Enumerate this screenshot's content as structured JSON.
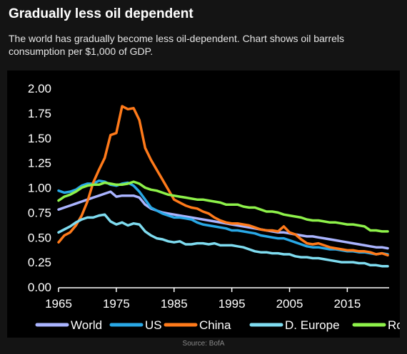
{
  "header": {
    "title": "Gradually less oil dependent",
    "subtitle": "The world has gradually become less oil-dependent. Chart shows oil barrels consumption per $1,000 of GDP."
  },
  "source": "Source: BofA",
  "chart_data": {
    "type": "line",
    "title": "",
    "xlabel": "",
    "ylabel": "",
    "xlim": [
      1965,
      2022
    ],
    "ylim": [
      0,
      2
    ],
    "x_ticks": [
      "1965",
      "1975",
      "1985",
      "1995",
      "2005",
      "2015"
    ],
    "y_ticks": [
      "0.00",
      "0.25",
      "0.50",
      "0.75",
      "1.00",
      "1.25",
      "1.50",
      "1.75",
      "2.00"
    ],
    "grid": false,
    "legend_position": "bottom",
    "x": [
      1965,
      1966,
      1967,
      1968,
      1969,
      1970,
      1971,
      1972,
      1973,
      1974,
      1975,
      1976,
      1977,
      1978,
      1979,
      1980,
      1981,
      1982,
      1983,
      1984,
      1985,
      1986,
      1987,
      1988,
      1989,
      1990,
      1991,
      1992,
      1993,
      1994,
      1995,
      1996,
      1997,
      1998,
      1999,
      2000,
      2001,
      2002,
      2003,
      2004,
      2005,
      2006,
      2007,
      2008,
      2009,
      2010,
      2011,
      2012,
      2013,
      2014,
      2015,
      2016,
      2017,
      2018,
      2019,
      2020,
      2021,
      2022
    ],
    "series": [
      {
        "name": "World",
        "color": "#aab4ff",
        "values": [
          0.78,
          0.8,
          0.82,
          0.84,
          0.86,
          0.88,
          0.9,
          0.92,
          0.94,
          0.96,
          0.91,
          0.92,
          0.92,
          0.92,
          0.9,
          0.83,
          0.79,
          0.77,
          0.75,
          0.74,
          0.73,
          0.72,
          0.71,
          0.7,
          0.69,
          0.68,
          0.67,
          0.66,
          0.65,
          0.64,
          0.63,
          0.62,
          0.61,
          0.6,
          0.59,
          0.58,
          0.57,
          0.56,
          0.55,
          0.55,
          0.54,
          0.53,
          0.52,
          0.51,
          0.51,
          0.5,
          0.49,
          0.48,
          0.47,
          0.46,
          0.45,
          0.44,
          0.43,
          0.42,
          0.41,
          0.4,
          0.4,
          0.39
        ]
      },
      {
        "name": "US",
        "color": "#29a8e6",
        "values": [
          0.97,
          0.95,
          0.96,
          0.98,
          1.02,
          1.04,
          1.04,
          1.07,
          1.06,
          1.03,
          1.02,
          1.04,
          1.05,
          1.02,
          0.96,
          0.88,
          0.8,
          0.77,
          0.74,
          0.72,
          0.7,
          0.7,
          0.69,
          0.68,
          0.65,
          0.63,
          0.62,
          0.61,
          0.6,
          0.59,
          0.57,
          0.57,
          0.56,
          0.55,
          0.54,
          0.52,
          0.51,
          0.5,
          0.49,
          0.49,
          0.47,
          0.45,
          0.43,
          0.41,
          0.4,
          0.4,
          0.39,
          0.38,
          0.38,
          0.37,
          0.36,
          0.36,
          0.35,
          0.35,
          0.34,
          0.33,
          0.34,
          0.33
        ]
      },
      {
        "name": "China",
        "color": "#ff7a1a",
        "values": [
          0.45,
          0.52,
          0.55,
          0.62,
          0.72,
          0.86,
          1.05,
          1.18,
          1.3,
          1.53,
          1.55,
          1.82,
          1.79,
          1.8,
          1.68,
          1.4,
          1.28,
          1.18,
          1.08,
          0.98,
          0.88,
          0.85,
          0.82,
          0.8,
          0.79,
          0.76,
          0.74,
          0.7,
          0.67,
          0.65,
          0.64,
          0.64,
          0.63,
          0.62,
          0.6,
          0.58,
          0.57,
          0.57,
          0.56,
          0.61,
          0.55,
          0.53,
          0.48,
          0.44,
          0.43,
          0.44,
          0.42,
          0.4,
          0.39,
          0.38,
          0.37,
          0.37,
          0.36,
          0.36,
          0.35,
          0.33,
          0.34,
          0.32
        ]
      },
      {
        "name": "D. Europe",
        "color": "#7fdcf0",
        "values": [
          0.55,
          0.58,
          0.61,
          0.65,
          0.68,
          0.7,
          0.7,
          0.72,
          0.73,
          0.66,
          0.63,
          0.65,
          0.62,
          0.64,
          0.63,
          0.56,
          0.52,
          0.49,
          0.48,
          0.46,
          0.45,
          0.46,
          0.43,
          0.43,
          0.44,
          0.44,
          0.43,
          0.44,
          0.42,
          0.42,
          0.42,
          0.41,
          0.4,
          0.38,
          0.36,
          0.35,
          0.35,
          0.34,
          0.34,
          0.33,
          0.33,
          0.31,
          0.3,
          0.3,
          0.29,
          0.29,
          0.28,
          0.27,
          0.26,
          0.25,
          0.25,
          0.25,
          0.24,
          0.24,
          0.22,
          0.22,
          0.21,
          0.21
        ]
      },
      {
        "name": "RoW",
        "color": "#8ef24a",
        "values": [
          0.87,
          0.91,
          0.93,
          0.96,
          1.0,
          1.02,
          1.03,
          1.03,
          1.05,
          1.04,
          1.03,
          1.03,
          1.04,
          1.06,
          1.04,
          1.0,
          0.98,
          0.97,
          0.95,
          0.93,
          0.92,
          0.91,
          0.9,
          0.89,
          0.88,
          0.88,
          0.87,
          0.86,
          0.85,
          0.83,
          0.83,
          0.83,
          0.81,
          0.8,
          0.8,
          0.78,
          0.76,
          0.76,
          0.75,
          0.73,
          0.72,
          0.71,
          0.7,
          0.68,
          0.67,
          0.67,
          0.66,
          0.65,
          0.65,
          0.64,
          0.63,
          0.63,
          0.62,
          0.61,
          0.57,
          0.57,
          0.56,
          0.56
        ]
      }
    ]
  }
}
